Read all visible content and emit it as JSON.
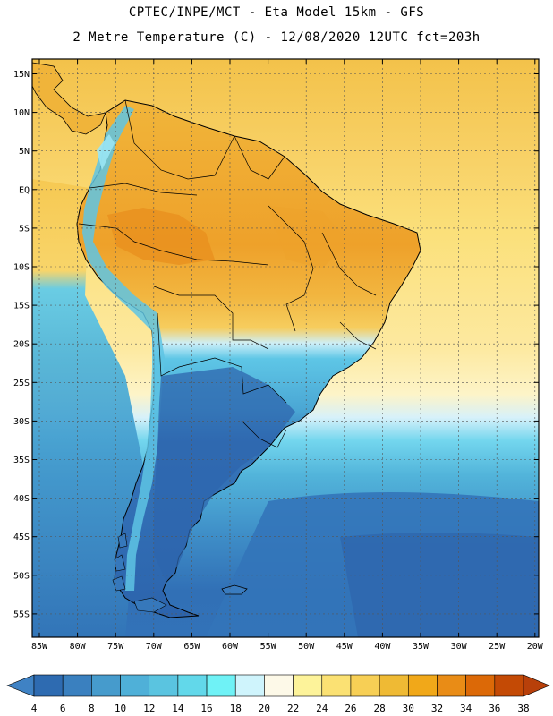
{
  "header": {
    "line1": "CPTEC/INPE/MCT -  Eta Model 15km - GFS",
    "line2": "2 Metre Temperature (C) - 12/08/2020 12UTC fct=203h"
  },
  "lat_labels": [
    "15N",
    "10N",
    "5N",
    "EQ",
    "5S",
    "10S",
    "15S",
    "20S",
    "25S",
    "30S",
    "35S",
    "40S",
    "45S",
    "50S",
    "55S"
  ],
  "lon_labels": [
    "85W",
    "80W",
    "75W",
    "70W",
    "65W",
    "60W",
    "55W",
    "50W",
    "45W",
    "40W",
    "35W",
    "30W",
    "25W",
    "20W"
  ],
  "colorbar": {
    "labels": [
      "4",
      "6",
      "8",
      "10",
      "12",
      "14",
      "16",
      "18",
      "20",
      "22",
      "24",
      "26",
      "28",
      "30",
      "32",
      "34",
      "36",
      "38"
    ],
    "colors": [
      "#2e6bb1",
      "#3a80bf",
      "#469bcc",
      "#4fb0d8",
      "#5ac4e0",
      "#62d8ea",
      "#6ff2f6",
      "#cff4fc",
      "#fdf9e8",
      "#fdf39a",
      "#fbe173",
      "#f7cf55",
      "#efba34",
      "#f1a819",
      "#e98c16",
      "#dc6907",
      "#c44a05"
    ],
    "low_color": "#3f82c4",
    "high_color": "#b8400a"
  },
  "map_colors": {
    "ocean_cold": "#2f6ab3",
    "ocean_mid": "#469bcc",
    "ocean_cool": "#56bcdc",
    "ocean_warm": "#fdf1b0",
    "ocean_hot": "#f8d05e",
    "land_hot": "#efa628",
    "land_warm": "#f4c24a",
    "land_cool": "#5bb9df",
    "land_cold": "#2f69b0",
    "coast": "#000000"
  }
}
